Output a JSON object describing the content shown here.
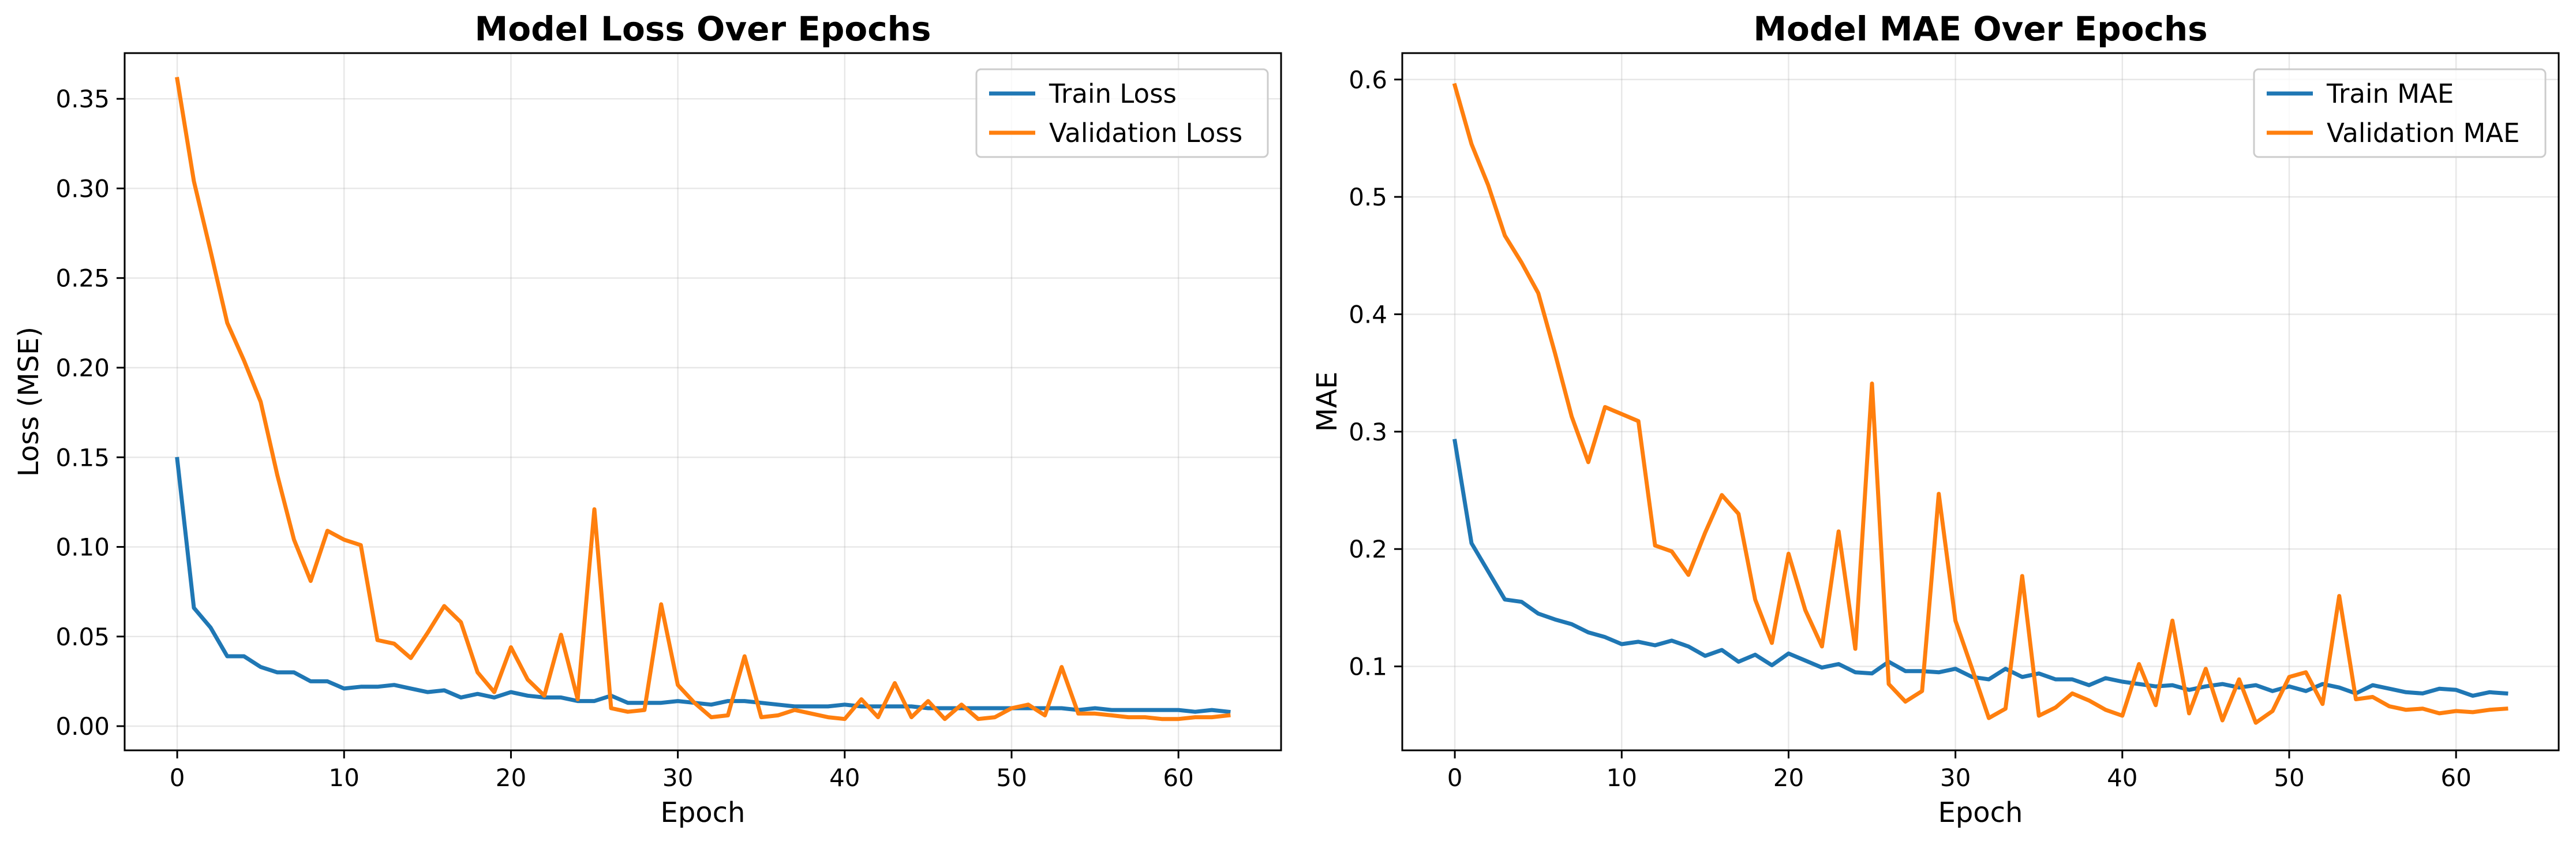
{
  "colors": {
    "train": "#1f77b4",
    "validation": "#ff7f0e"
  },
  "chart_data": [
    {
      "type": "line",
      "title": "Model Loss Over Epochs",
      "xlabel": "Epoch",
      "ylabel": "Loss (MSE)",
      "xlim": [
        -3.15,
        66.15
      ],
      "ylim": [
        -0.0135,
        0.3755
      ],
      "xticks": [
        0,
        10,
        20,
        30,
        40,
        50,
        60
      ],
      "yticks": [
        0.0,
        0.05,
        0.1,
        0.15,
        0.2,
        0.25,
        0.3,
        0.35
      ],
      "ytick_labels": [
        "0.00",
        "0.05",
        "0.10",
        "0.15",
        "0.20",
        "0.25",
        "0.30",
        "0.35"
      ],
      "grid": true,
      "legend": "top-right",
      "x": [
        0,
        1,
        2,
        3,
        4,
        5,
        6,
        7,
        8,
        9,
        10,
        11,
        12,
        13,
        14,
        15,
        16,
        17,
        18,
        19,
        20,
        21,
        22,
        23,
        24,
        25,
        26,
        27,
        28,
        29,
        30,
        31,
        32,
        33,
        34,
        35,
        36,
        37,
        38,
        39,
        40,
        41,
        42,
        43,
        44,
        45,
        46,
        47,
        48,
        49,
        50,
        51,
        52,
        53,
        54,
        55,
        56,
        57,
        58,
        59,
        60,
        61,
        62,
        63
      ],
      "series": [
        {
          "name": "Train Loss",
          "values": [
            0.149,
            0.066,
            0.055,
            0.039,
            0.039,
            0.033,
            0.03,
            0.03,
            0.025,
            0.025,
            0.021,
            0.022,
            0.022,
            0.023,
            0.021,
            0.019,
            0.02,
            0.016,
            0.018,
            0.016,
            0.019,
            0.017,
            0.016,
            0.016,
            0.014,
            0.014,
            0.017,
            0.013,
            0.013,
            0.013,
            0.014,
            0.013,
            0.012,
            0.014,
            0.014,
            0.013,
            0.012,
            0.011,
            0.011,
            0.011,
            0.012,
            0.011,
            0.011,
            0.011,
            0.011,
            0.01,
            0.01,
            0.01,
            0.01,
            0.01,
            0.01,
            0.01,
            0.01,
            0.01,
            0.009,
            0.01,
            0.009,
            0.009,
            0.009,
            0.009,
            0.009,
            0.008,
            0.009,
            0.008
          ]
        },
        {
          "name": "Validation Loss",
          "values": [
            0.361,
            0.304,
            0.265,
            0.225,
            0.204,
            0.181,
            0.14,
            0.104,
            0.081,
            0.109,
            0.104,
            0.101,
            0.048,
            0.046,
            0.038,
            0.052,
            0.067,
            0.058,
            0.03,
            0.019,
            0.044,
            0.026,
            0.017,
            0.051,
            0.015,
            0.121,
            0.01,
            0.008,
            0.009,
            0.068,
            0.023,
            0.013,
            0.005,
            0.006,
            0.039,
            0.005,
            0.006,
            0.009,
            0.007,
            0.005,
            0.004,
            0.015,
            0.005,
            0.024,
            0.005,
            0.014,
            0.004,
            0.012,
            0.004,
            0.005,
            0.01,
            0.012,
            0.006,
            0.033,
            0.007,
            0.007,
            0.006,
            0.005,
            0.005,
            0.004,
            0.004,
            0.005,
            0.005,
            0.006
          ]
        }
      ]
    },
    {
      "type": "line",
      "title": "Model MAE Over Epochs",
      "xlabel": "Epoch",
      "ylabel": "MAE",
      "xlim": [
        -3.15,
        66.15
      ],
      "ylim": [
        0.0285,
        0.6225
      ],
      "xticks": [
        0,
        10,
        20,
        30,
        40,
        50,
        60
      ],
      "yticks": [
        0.1,
        0.2,
        0.3,
        0.4,
        0.5,
        0.6
      ],
      "ytick_labels": [
        "0.1",
        "0.2",
        "0.3",
        "0.4",
        "0.5",
        "0.6"
      ],
      "grid": true,
      "legend": "top-right",
      "x": [
        0,
        1,
        2,
        3,
        4,
        5,
        6,
        7,
        8,
        9,
        10,
        11,
        12,
        13,
        14,
        15,
        16,
        17,
        18,
        19,
        20,
        21,
        22,
        23,
        24,
        25,
        26,
        27,
        28,
        29,
        30,
        31,
        32,
        33,
        34,
        35,
        36,
        37,
        38,
        39,
        40,
        41,
        42,
        43,
        44,
        45,
        46,
        47,
        48,
        49,
        50,
        51,
        52,
        53,
        54,
        55,
        56,
        57,
        58,
        59,
        60,
        61,
        62,
        63
      ],
      "series": [
        {
          "name": "Train MAE",
          "values": [
            0.292,
            0.205,
            0.181,
            0.157,
            0.155,
            0.145,
            0.14,
            0.136,
            0.129,
            0.125,
            0.119,
            0.121,
            0.118,
            0.122,
            0.117,
            0.109,
            0.114,
            0.104,
            0.11,
            0.101,
            0.111,
            0.105,
            0.099,
            0.102,
            0.095,
            0.094,
            0.104,
            0.096,
            0.096,
            0.095,
            0.098,
            0.091,
            0.089,
            0.098,
            0.091,
            0.094,
            0.089,
            0.089,
            0.084,
            0.09,
            0.087,
            0.085,
            0.083,
            0.084,
            0.08,
            0.083,
            0.085,
            0.082,
            0.084,
            0.079,
            0.083,
            0.079,
            0.085,
            0.082,
            0.077,
            0.084,
            0.081,
            0.078,
            0.077,
            0.081,
            0.08,
            0.075,
            0.078,
            0.077
          ]
        },
        {
          "name": "Validation MAE",
          "values": [
            0.595,
            0.545,
            0.51,
            0.467,
            0.444,
            0.418,
            0.367,
            0.313,
            0.274,
            0.321,
            0.315,
            0.309,
            0.203,
            0.198,
            0.178,
            0.214,
            0.246,
            0.23,
            0.157,
            0.12,
            0.196,
            0.148,
            0.117,
            0.215,
            0.115,
            0.341,
            0.085,
            0.07,
            0.079,
            0.247,
            0.139,
            0.098,
            0.056,
            0.064,
            0.177,
            0.058,
            0.065,
            0.077,
            0.071,
            0.063,
            0.058,
            0.102,
            0.067,
            0.139,
            0.06,
            0.098,
            0.054,
            0.089,
            0.052,
            0.062,
            0.091,
            0.095,
            0.068,
            0.16,
            0.072,
            0.074,
            0.066,
            0.063,
            0.064,
            0.06,
            0.062,
            0.061,
            0.063,
            0.064
          ]
        }
      ]
    }
  ]
}
